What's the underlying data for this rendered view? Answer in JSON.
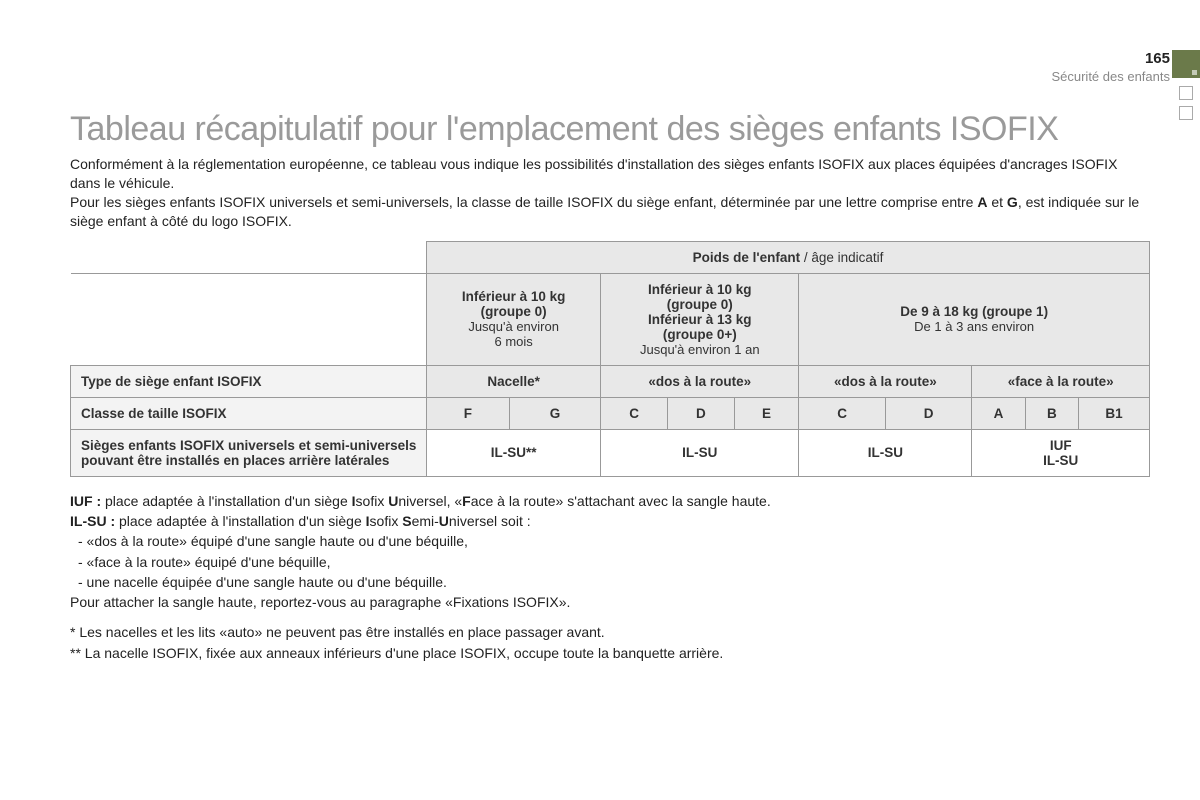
{
  "header": {
    "page_number": "165",
    "section": "Sécurité des enfants",
    "accent_color": "#6b7a4a"
  },
  "title": "Tableau récapitulatif pour l'emplacement des sièges enfants ISOFIX",
  "intro_p1": "Conformément à la réglementation européenne, ce tableau vous indique les possibilités d'installation des sièges enfants ISOFIX aux places équipées d'ancrages ISOFIX dans le véhicule.",
  "intro_p2_a": "Pour les sièges enfants ISOFIX universels et semi-universels, la classe de taille ISOFIX du siège enfant, déterminée par une lettre comprise entre ",
  "intro_p2_b1": "A",
  "intro_p2_mid": " et ",
  "intro_p2_b2": "G",
  "intro_p2_c": ", est indiquée sur le siège enfant à côté du logo ISOFIX.",
  "table": {
    "top_header_bold": "Poids de l'enfant",
    "top_header_light": " / âge indicatif",
    "col_groups": [
      {
        "title": "Inférieur à 10 kg\n(groupe 0)",
        "sub": "Jusqu'à environ\n6 mois",
        "span": 2
      },
      {
        "title": "Inférieur à 10 kg\n(groupe 0)\nInférieur à 13 kg\n(groupe 0+)",
        "sub": "Jusqu'à environ 1 an",
        "span": 3
      },
      {
        "title": "De 9 à 18 kg (groupe 1)",
        "sub": "De 1 à 3 ans environ",
        "span": 5
      }
    ],
    "row_type_label": "Type de siège enfant ISOFIX",
    "type_cells": [
      {
        "text": "Nacelle*",
        "span": 2
      },
      {
        "text": "«dos à la route»",
        "span": 3
      },
      {
        "text": "«dos à la route»",
        "span": 2
      },
      {
        "text": "«face à la route»",
        "span": 3
      }
    ],
    "row_class_label": "Classe de taille ISOFIX",
    "class_cells": [
      "F",
      "G",
      "C",
      "D",
      "E",
      "C",
      "D",
      "A",
      "B",
      "B1"
    ],
    "row_seats_label": "Sièges enfants ISOFIX universels et semi-universels pouvant être installés en places arrière latérales",
    "seats_cells": [
      {
        "text": "IL-SU**",
        "span": 2
      },
      {
        "text": "IL-SU",
        "span": 3
      },
      {
        "text": "IL-SU",
        "span": 2
      },
      {
        "text": "IUF\nIL-SU",
        "span": 3
      }
    ]
  },
  "definitions": {
    "iuf_label": "IUF :",
    "iuf_text_parts": [
      " place adaptée à l'installation d'un siège ",
      "I",
      "sofix ",
      "U",
      "niversel, «",
      "F",
      "ace à la route» s'attachant avec la sangle haute."
    ],
    "ilsu_label": "IL-SU :",
    "ilsu_text_parts": [
      " place adaptée à l'installation d'un siège ",
      "I",
      "sofix ",
      "S",
      "emi-",
      "U",
      "niversel soit :"
    ],
    "bullets": [
      "«dos à la route» équipé d'une sangle haute ou d'une béquille,",
      "«face à la route» équipé d'une béquille,",
      "une nacelle équipée d'une sangle haute ou d'une béquille."
    ],
    "closing": "Pour attacher la sangle haute, reportez-vous au paragraphe «Fixations ISOFIX»."
  },
  "footnotes": [
    "* Les nacelles et les lits «auto» ne peuvent pas être installés en place passager avant.",
    "** La nacelle ISOFIX, fixée aux anneaux inférieurs d'une place ISOFIX, occupe toute la banquette arrière."
  ],
  "col_widths": {
    "label": "33%"
  }
}
